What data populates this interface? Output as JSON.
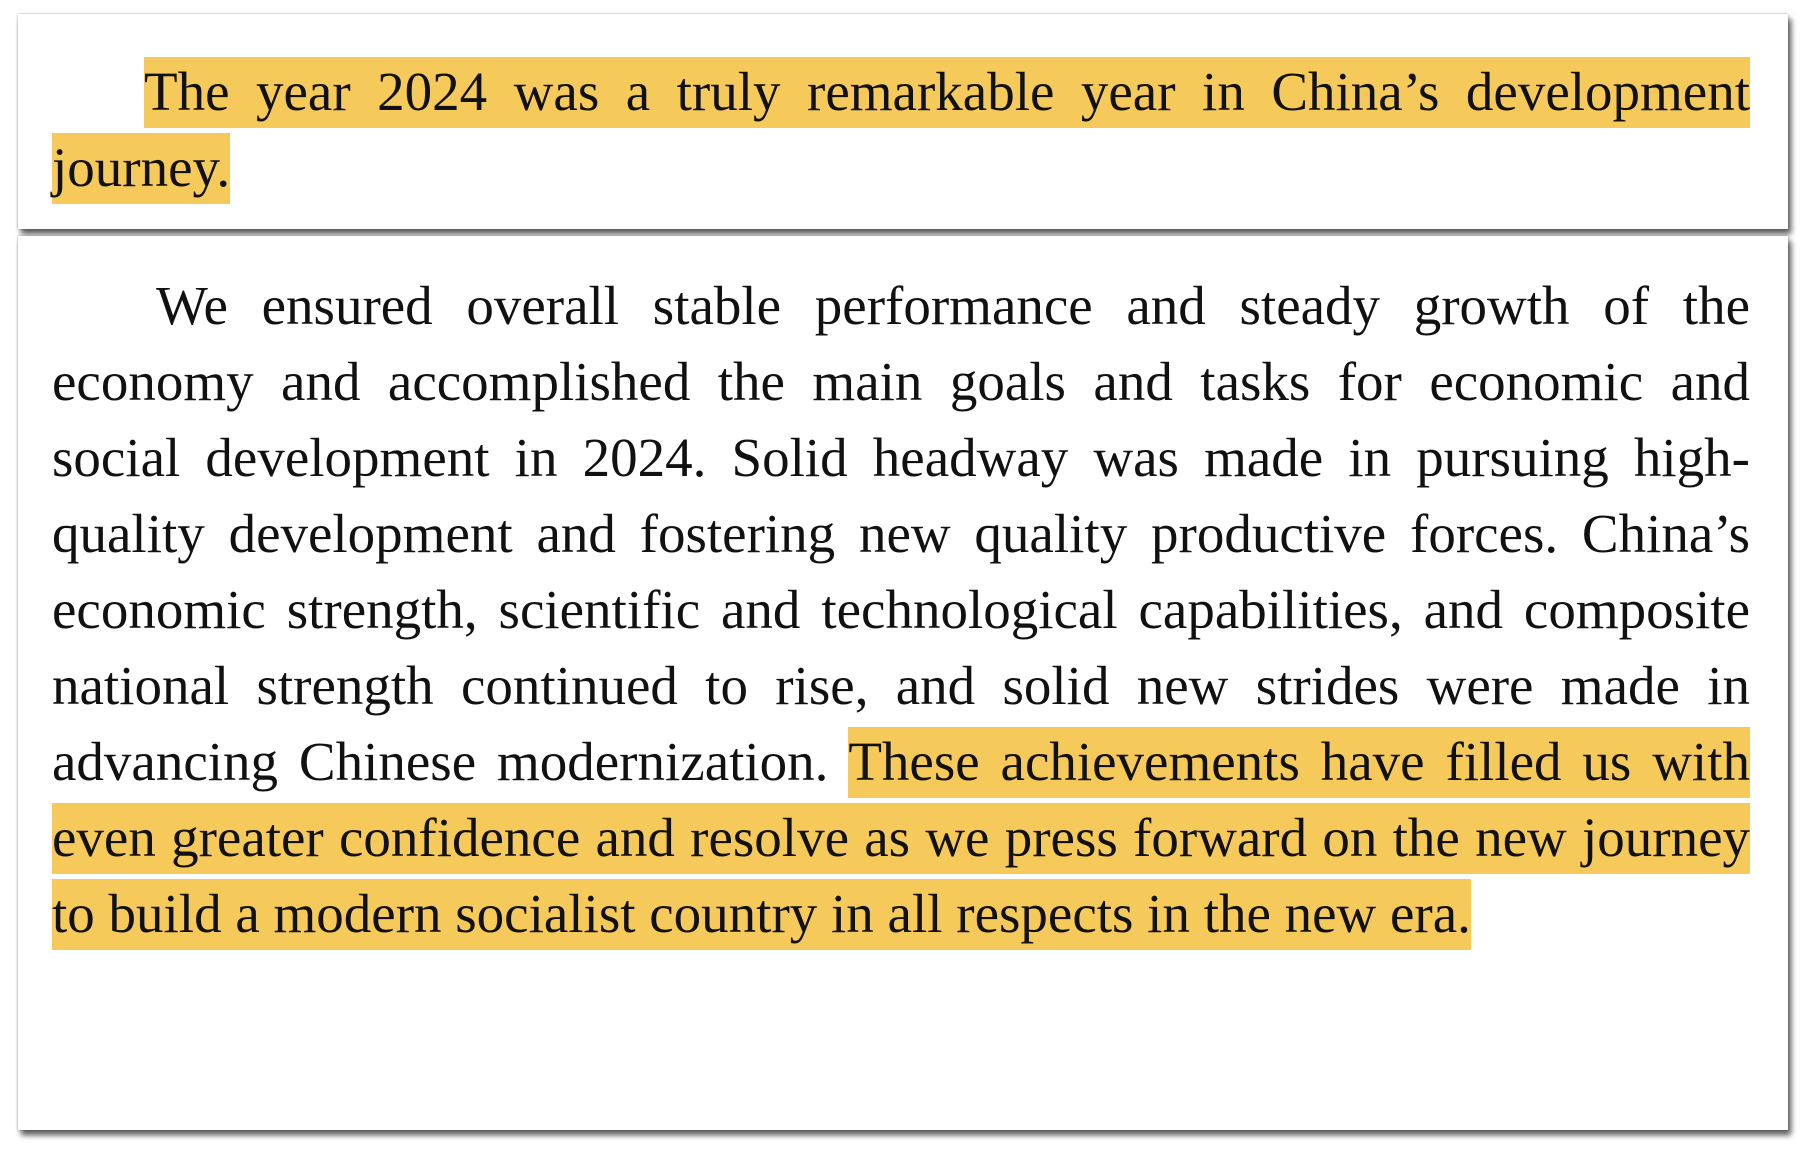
{
  "excerpt_1": {
    "highlighted": "The year 2024 was a truly remarkable year in China’s development journey."
  },
  "excerpt_2": {
    "plain": "We ensured overall stable performance and steady growth of the economy and accomplished the main goals and tasks for economic and social development in 2024. Solid headway was made in pursuing high-quality development and fostering new quality productive forces. China’s economic strength, scientific and technological capabilities, and composite national strength continued to rise, and solid new strides were made in advancing Chinese modernization. ",
    "highlighted": "These achievements have filled us with even greater confidence and resolve as we press forward on the new journey to build a modern socialist country in all respects in the new era."
  },
  "colors": {
    "highlight": "#f5c95a",
    "text": "#111111",
    "paper": "#ffffff"
  }
}
